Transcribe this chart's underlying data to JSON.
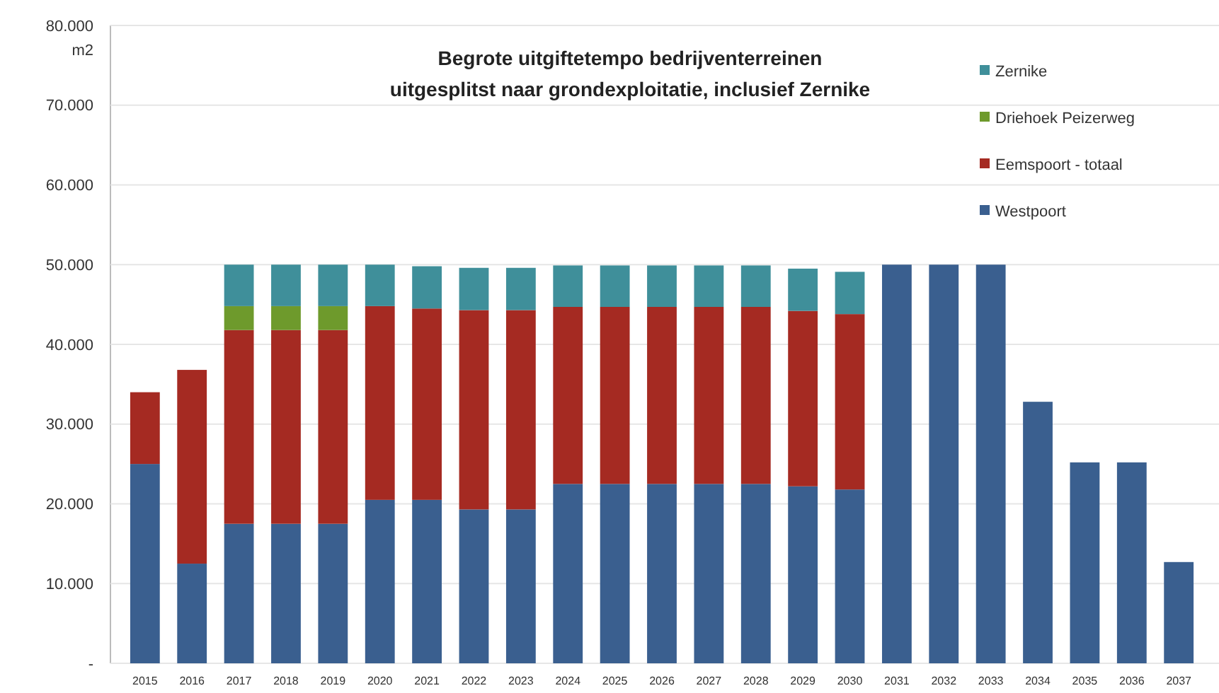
{
  "chart_data": {
    "type": "bar",
    "stacked": true,
    "title": "Begrote uitgiftetempo bedrijventerreinen uitgesplitst naar grondexploitatie, inclusief Zernike",
    "ylabel": "m2",
    "categories": [
      "2015",
      "2016",
      "2017",
      "2018",
      "2019",
      "2020",
      "2021",
      "2022",
      "2023",
      "2024",
      "2025",
      "2026",
      "2027",
      "2028",
      "2029",
      "2030",
      "2031",
      "2032",
      "2033",
      "2034",
      "2035",
      "2036",
      "2037"
    ],
    "series": [
      {
        "name": "Westpoort",
        "color": "#3a5f8f",
        "values": [
          25000,
          12500,
          17500,
          17500,
          17500,
          20500,
          20500,
          19300,
          19300,
          22500,
          22500,
          22500,
          22500,
          22500,
          22200,
          21800,
          50000,
          50000,
          50000,
          32800,
          25200,
          25200,
          12700
        ]
      },
      {
        "name": "Eemspoort - totaal",
        "color": "#a52a22",
        "values": [
          9000,
          24300,
          24300,
          24300,
          24300,
          24300,
          24000,
          25000,
          25000,
          22200,
          22200,
          22200,
          22200,
          22200,
          22000,
          22000,
          null,
          null,
          null,
          null,
          null,
          null,
          null
        ]
      },
      {
        "name": "Driehoek Peizerweg",
        "color": "#6e9a2c",
        "values": [
          null,
          null,
          3000,
          3000,
          3000,
          null,
          null,
          null,
          null,
          null,
          null,
          null,
          null,
          null,
          null,
          null,
          null,
          null,
          null,
          null,
          null,
          null,
          null
        ]
      },
      {
        "name": "Zernike",
        "color": "#3f8f9a",
        "values": [
          null,
          null,
          5200,
          5200,
          5200,
          5200,
          5300,
          5300,
          5300,
          5200,
          5200,
          5200,
          5200,
          5200,
          5300,
          5300,
          null,
          null,
          null,
          null,
          null,
          null,
          null
        ]
      }
    ],
    "ylim": [
      0,
      80000
    ],
    "yticks": [
      {
        "value": 0,
        "label": "-"
      },
      {
        "value": 10000,
        "label": "10.000"
      },
      {
        "value": 20000,
        "label": "20.000"
      },
      {
        "value": 30000,
        "label": "30.000"
      },
      {
        "value": 40000,
        "label": "40.000"
      },
      {
        "value": 50000,
        "label": "50.000"
      },
      {
        "value": 60000,
        "label": "60.000"
      },
      {
        "value": 70000,
        "label": "70.000"
      },
      {
        "value": 80000,
        "label": "80.000"
      }
    ],
    "grid": "y",
    "legend": "top right"
  }
}
